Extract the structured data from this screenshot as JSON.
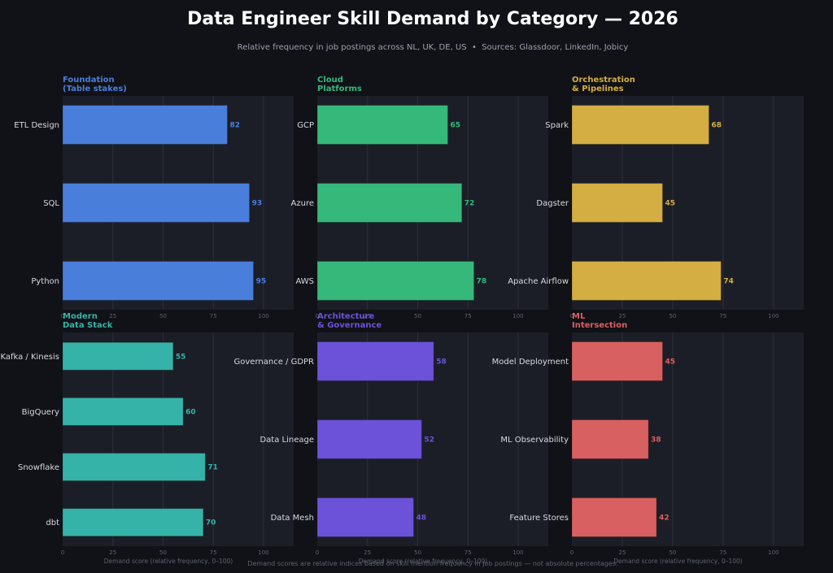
{
  "page": {
    "title": "Data Engineer Skill Demand by Category — 2026",
    "subtitle": "Relative frequency in job postings across NL, UK, DE, US  •  Sources: Glassdoor, LinkedIn, Jobicy",
    "footer": "Demand scores are relative indices based on skill mention frequency in job postings — not absolute percentages."
  },
  "colors": {
    "background": "#111217",
    "panel": "#1c1e27",
    "grid": "#2c2f3b"
  },
  "chart_data": [
    {
      "type": "bar",
      "orientation": "horizontal",
      "title": "Foundation\n(Table stakes)",
      "color": "#4a7edb",
      "categories": [
        "ETL Design",
        "SQL",
        "Python"
      ],
      "values": [
        82,
        93,
        95
      ],
      "xlabel": "",
      "xlim": [
        0,
        115
      ],
      "xticks": [
        0,
        25,
        50,
        75,
        100
      ],
      "grid": true
    },
    {
      "type": "bar",
      "orientation": "horizontal",
      "title": "Cloud\nPlatforms",
      "color": "#36b87b",
      "categories": [
        "GCP",
        "Azure",
        "AWS"
      ],
      "values": [
        65,
        72,
        78
      ],
      "xlabel": "",
      "xlim": [
        0,
        115
      ],
      "xticks": [
        0,
        25,
        50,
        75,
        100
      ],
      "grid": true
    },
    {
      "type": "bar",
      "orientation": "horizontal",
      "title": "Orchestration\n& Pipelines",
      "color": "#d4ae42",
      "categories": [
        "Spark",
        "Dagster",
        "Apache Airflow"
      ],
      "values": [
        68,
        45,
        74
      ],
      "xlabel": "",
      "xlim": [
        0,
        115
      ],
      "xticks": [
        0,
        25,
        50,
        75,
        100
      ],
      "grid": true
    },
    {
      "type": "bar",
      "orientation": "horizontal",
      "title": "Modern\nData Stack",
      "color": "#36b3a8",
      "categories": [
        "Kafka / Kinesis",
        "BigQuery",
        "Snowflake",
        "dbt"
      ],
      "values": [
        55,
        60,
        71,
        70
      ],
      "xlabel": "Demand score (relative frequency, 0–100)",
      "xlim": [
        0,
        115
      ],
      "xticks": [
        0,
        25,
        50,
        75,
        100
      ],
      "grid": true
    },
    {
      "type": "bar",
      "orientation": "horizontal",
      "title": "Architecture\n& Governance",
      "color": "#6b52d9",
      "categories": [
        "Governance / GDPR",
        "Data Lineage",
        "Data Mesh"
      ],
      "values": [
        58,
        52,
        48
      ],
      "xlabel": "Demand score (relative frequency, 0–100)",
      "xlim": [
        0,
        115
      ],
      "xticks": [
        0,
        25,
        50,
        75,
        100
      ],
      "grid": true
    },
    {
      "type": "bar",
      "orientation": "horizontal",
      "title": "ML\nIntersection",
      "color": "#d96060",
      "categories": [
        "Model Deployment",
        "ML Observability",
        "Feature Stores"
      ],
      "values": [
        45,
        38,
        42
      ],
      "xlabel": "Demand score (relative frequency, 0–100)",
      "xlim": [
        0,
        115
      ],
      "xticks": [
        0,
        25,
        50,
        75,
        100
      ],
      "grid": true
    }
  ]
}
